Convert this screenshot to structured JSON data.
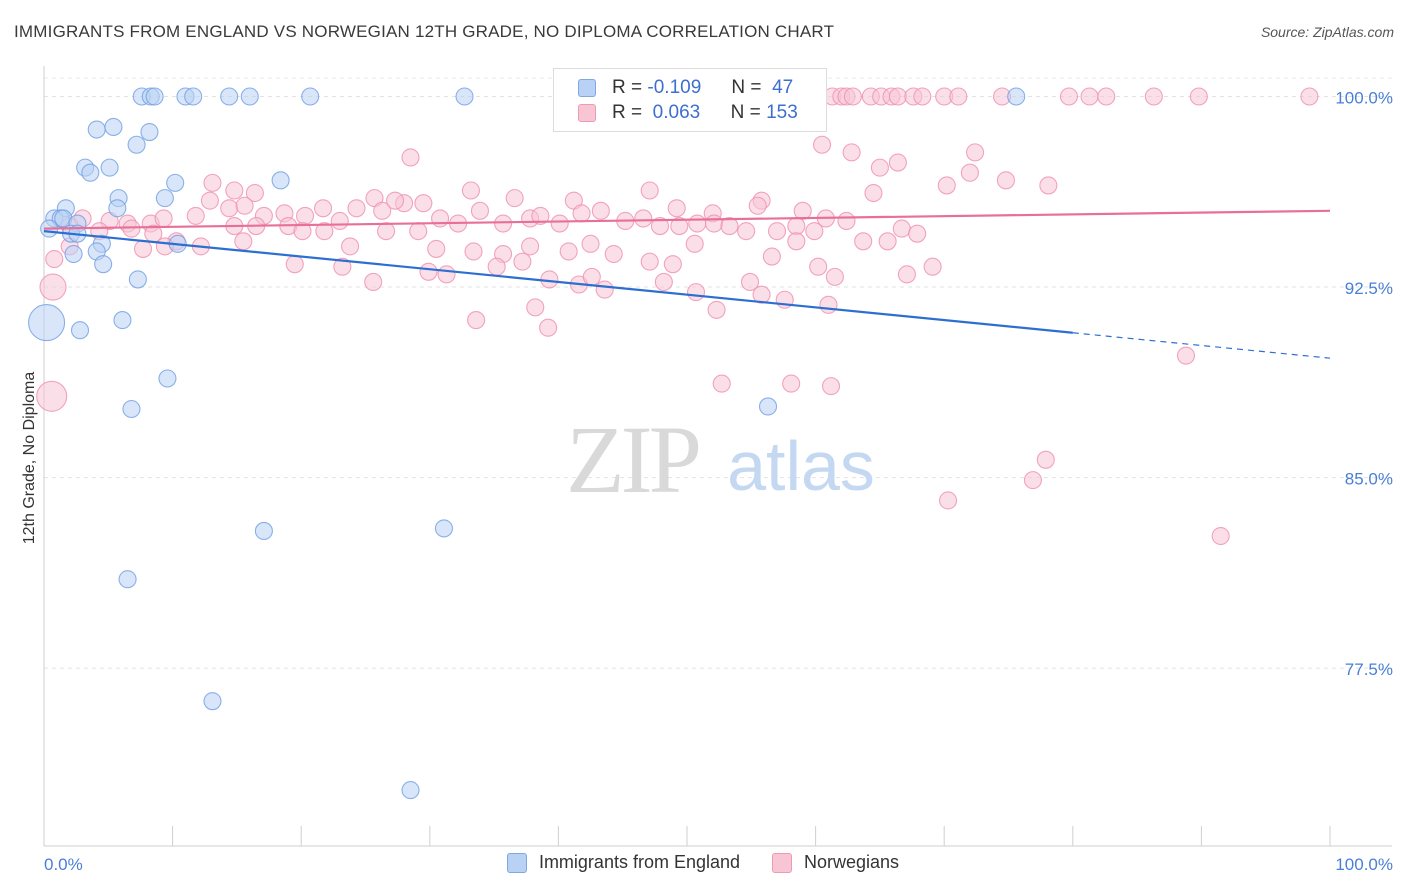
{
  "title": "IMMIGRANTS FROM ENGLAND VS NORWEGIAN 12TH GRADE, NO DIPLOMA CORRELATION CHART",
  "source": "Source: ZipAtlas.com",
  "watermark": {
    "zip": "ZIP",
    "atlas": "atlas"
  },
  "legend_top": {
    "r_label": "R =",
    "n_label": "N =",
    "rows": [
      {
        "r": "-0.109",
        "n": "47",
        "color": "#a8c8f4"
      },
      {
        "r": "0.063",
        "n": "153",
        "color": "#f6b8cb"
      }
    ]
  },
  "chart_data": {
    "type": "scatter",
    "title": "IMMIGRANTS FROM ENGLAND VS NORWEGIAN 12TH GRADE, NO DIPLOMA CORRELATION CHART",
    "xlabel": "",
    "ylabel": "12th Grade, No Diploma",
    "xlim": [
      0,
      100
    ],
    "ylim": [
      70.5,
      101.2
    ],
    "x_tick_labels": [
      {
        "value": 0,
        "label": "0.0%"
      },
      {
        "value": 100,
        "label": "100.0%"
      }
    ],
    "y_tick_labels": [
      {
        "value": 100,
        "label": "100.0%"
      },
      {
        "value": 92.5,
        "label": "92.5%"
      },
      {
        "value": 85,
        "label": "85.0%"
      },
      {
        "value": 77.5,
        "label": "77.5%"
      }
    ],
    "grid": true,
    "legend_position": "bottom",
    "series": [
      {
        "name": "Immigrants from England",
        "color": "#6f9fe3",
        "fill": "#b9d1f4",
        "line_color": "#2d6fd0",
        "trend": {
          "x0": 0,
          "y0": 94.7,
          "x1": 80,
          "y1": 90.7,
          "dash_to_x": 100,
          "dash_y": 89.7
        },
        "points": [
          [
            7.6,
            100
          ],
          [
            8.3,
            100
          ],
          [
            8.6,
            100
          ],
          [
            11.0,
            100
          ],
          [
            11.6,
            100
          ],
          [
            14.4,
            100
          ],
          [
            16.0,
            100
          ],
          [
            20.7,
            100
          ],
          [
            32.7,
            100
          ],
          [
            75.6,
            100
          ],
          [
            4.1,
            98.7
          ],
          [
            5.4,
            98.8
          ],
          [
            8.2,
            98.6
          ],
          [
            7.2,
            98.1
          ],
          [
            3.2,
            97.2
          ],
          [
            5.1,
            97.2
          ],
          [
            3.6,
            97.0
          ],
          [
            10.2,
            96.6
          ],
          [
            18.4,
            96.7
          ],
          [
            5.8,
            96.0
          ],
          [
            9.4,
            96.0
          ],
          [
            1.7,
            95.6
          ],
          [
            5.7,
            95.6
          ],
          [
            0.8,
            95.2
          ],
          [
            1.3,
            95.2
          ],
          [
            1.5,
            95.2
          ],
          [
            2.6,
            95.0
          ],
          [
            0.4,
            94.8
          ],
          [
            2.1,
            94.6
          ],
          [
            2.6,
            94.6
          ],
          [
            4.5,
            94.2
          ],
          [
            10.4,
            94.2
          ],
          [
            4.1,
            93.9
          ],
          [
            2.3,
            93.8
          ],
          [
            4.6,
            93.4
          ],
          [
            7.3,
            92.8
          ],
          [
            0.2,
            91.1
          ],
          [
            6.1,
            91.2
          ],
          [
            2.8,
            90.8
          ],
          [
            9.6,
            88.9
          ],
          [
            6.8,
            87.7
          ],
          [
            56.3,
            87.8
          ],
          [
            17.1,
            82.9
          ],
          [
            31.1,
            83.0
          ],
          [
            6.5,
            81.0
          ],
          [
            13.1,
            76.2
          ],
          [
            28.5,
            72.7
          ]
        ],
        "sizes": {
          "0.2,91.1": 36
        }
      },
      {
        "name": "Norwegians",
        "color": "#ef8fae",
        "fill": "#f8c5d5",
        "line_color": "#e86f9a",
        "trend": {
          "x0": 0,
          "y0": 94.8,
          "x1": 100,
          "y1": 95.5
        },
        "points": [
          [
            59.6,
            100
          ],
          [
            61.3,
            100
          ],
          [
            62.0,
            100
          ],
          [
            62.4,
            100
          ],
          [
            62.9,
            100
          ],
          [
            64.3,
            100
          ],
          [
            65.1,
            100
          ],
          [
            65.9,
            100
          ],
          [
            66.4,
            100
          ],
          [
            67.6,
            100
          ],
          [
            68.3,
            100
          ],
          [
            70.0,
            100
          ],
          [
            71.1,
            100
          ],
          [
            74.5,
            100
          ],
          [
            79.7,
            100
          ],
          [
            81.3,
            100
          ],
          [
            82.6,
            100
          ],
          [
            86.3,
            100
          ],
          [
            89.8,
            100
          ],
          [
            98.4,
            100
          ],
          [
            28.5,
            97.6
          ],
          [
            60.5,
            98.1
          ],
          [
            62.8,
            97.8
          ],
          [
            66.4,
            97.4
          ],
          [
            65.0,
            97.2
          ],
          [
            72.0,
            97.0
          ],
          [
            74.8,
            96.7
          ],
          [
            78.1,
            96.5
          ],
          [
            47.1,
            96.3
          ],
          [
            64.5,
            96.2
          ],
          [
            55.8,
            95.9
          ],
          [
            70.2,
            96.5
          ],
          [
            72.4,
            97.8
          ],
          [
            13.1,
            96.6
          ],
          [
            14.8,
            96.3
          ],
          [
            16.4,
            96.2
          ],
          [
            25.7,
            96.0
          ],
          [
            28.0,
            95.8
          ],
          [
            33.2,
            96.3
          ],
          [
            36.6,
            96.0
          ],
          [
            41.2,
            95.9
          ],
          [
            49.2,
            95.6
          ],
          [
            52.0,
            95.4
          ],
          [
            55.5,
            95.7
          ],
          [
            59.0,
            95.5
          ],
          [
            60.8,
            95.2
          ],
          [
            62.4,
            95.1
          ],
          [
            3.0,
            95.2
          ],
          [
            5.1,
            95.1
          ],
          [
            6.5,
            95.0
          ],
          [
            8.3,
            95.0
          ],
          [
            9.3,
            95.2
          ],
          [
            11.8,
            95.3
          ],
          [
            12.9,
            95.9
          ],
          [
            14.4,
            95.6
          ],
          [
            15.6,
            95.7
          ],
          [
            17.1,
            95.3
          ],
          [
            18.7,
            95.4
          ],
          [
            20.3,
            95.3
          ],
          [
            21.7,
            95.6
          ],
          [
            23.0,
            95.1
          ],
          [
            24.3,
            95.6
          ],
          [
            26.3,
            95.5
          ],
          [
            27.3,
            95.9
          ],
          [
            29.5,
            95.8
          ],
          [
            30.8,
            95.2
          ],
          [
            32.2,
            95.0
          ],
          [
            33.9,
            95.5
          ],
          [
            35.7,
            95.0
          ],
          [
            37.8,
            95.2
          ],
          [
            38.6,
            95.3
          ],
          [
            40.1,
            95.0
          ],
          [
            41.8,
            95.4
          ],
          [
            43.3,
            95.5
          ],
          [
            45.2,
            95.1
          ],
          [
            46.6,
            95.2
          ],
          [
            47.9,
            94.9
          ],
          [
            49.4,
            94.9
          ],
          [
            50.8,
            95.0
          ],
          [
            52.1,
            95.0
          ],
          [
            53.3,
            94.9
          ],
          [
            54.6,
            94.7
          ],
          [
            57.0,
            94.7
          ],
          [
            58.5,
            94.9
          ],
          [
            59.9,
            94.7
          ],
          [
            63.7,
            94.3
          ],
          [
            65.6,
            94.3
          ],
          [
            66.7,
            94.8
          ],
          [
            67.9,
            94.6
          ],
          [
            2.0,
            94.9
          ],
          [
            4.3,
            94.7
          ],
          [
            6.8,
            94.8
          ],
          [
            8.5,
            94.6
          ],
          [
            10.3,
            94.3
          ],
          [
            12.2,
            94.1
          ],
          [
            14.8,
            94.9
          ],
          [
            16.5,
            94.9
          ],
          [
            19.0,
            94.9
          ],
          [
            20.1,
            94.7
          ],
          [
            21.8,
            94.7
          ],
          [
            23.8,
            94.1
          ],
          [
            26.6,
            94.7
          ],
          [
            29.1,
            94.7
          ],
          [
            30.5,
            94.0
          ],
          [
            33.4,
            93.9
          ],
          [
            35.7,
            93.8
          ],
          [
            37.8,
            94.1
          ],
          [
            40.8,
            93.9
          ],
          [
            42.5,
            94.2
          ],
          [
            44.3,
            93.8
          ],
          [
            47.1,
            93.5
          ],
          [
            48.9,
            93.4
          ],
          [
            50.6,
            94.2
          ],
          [
            56.6,
            93.7
          ],
          [
            58.5,
            94.3
          ],
          [
            60.2,
            93.3
          ],
          [
            61.5,
            92.9
          ],
          [
            67.1,
            93.0
          ],
          [
            69.1,
            93.3
          ],
          [
            0.8,
            93.6
          ],
          [
            2.0,
            94.1
          ],
          [
            7.7,
            94.0
          ],
          [
            9.4,
            94.1
          ],
          [
            15.5,
            94.3
          ],
          [
            19.5,
            93.4
          ],
          [
            23.2,
            93.3
          ],
          [
            25.6,
            92.7
          ],
          [
            29.9,
            93.1
          ],
          [
            31.3,
            93.0
          ],
          [
            35.2,
            93.3
          ],
          [
            37.2,
            93.5
          ],
          [
            39.3,
            92.8
          ],
          [
            41.6,
            92.6
          ],
          [
            42.6,
            92.9
          ],
          [
            48.2,
            92.7
          ],
          [
            50.7,
            92.3
          ],
          [
            54.9,
            92.7
          ],
          [
            55.8,
            92.2
          ],
          [
            57.6,
            92.0
          ],
          [
            61.0,
            91.8
          ],
          [
            38.2,
            91.7
          ],
          [
            39.2,
            90.9
          ],
          [
            33.6,
            91.2
          ],
          [
            43.6,
            92.4
          ],
          [
            52.3,
            91.6
          ],
          [
            0.7,
            92.5
          ],
          [
            0.6,
            88.2
          ],
          [
            88.8,
            89.8
          ],
          [
            52.7,
            88.7
          ],
          [
            58.1,
            88.7
          ],
          [
            61.2,
            88.6
          ],
          [
            77.9,
            85.7
          ],
          [
            76.9,
            84.9
          ],
          [
            70.3,
            84.1
          ],
          [
            91.5,
            82.7
          ]
        ],
        "sizes": {
          "0.7,92.5": 26,
          "0.6,88.2": 30
        }
      }
    ]
  },
  "legend_bottom": [
    "Immigrants from England",
    "Norwegians"
  ]
}
